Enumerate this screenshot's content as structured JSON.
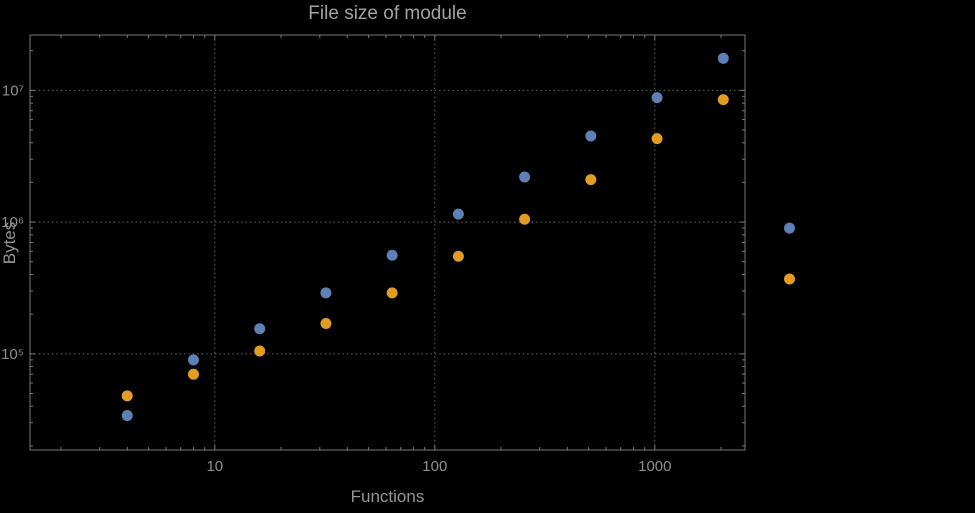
{
  "chart_data": {
    "type": "scatter",
    "title": "File size of module",
    "xlabel": "Functions",
    "ylabel": "Bytes",
    "x_scale": "log",
    "y_scale": "log",
    "grid": "dotted",
    "legend": "none",
    "x": [
      4,
      8,
      16,
      32,
      64,
      128,
      256,
      512,
      1024,
      2048,
      4096
    ],
    "series": [
      {
        "name": "series-1-blue",
        "color": "#5e81b5",
        "values": [
          34000,
          90000,
          155000,
          290000,
          560000,
          1150000,
          2200000,
          4500000,
          8800000,
          17500000,
          900000
        ]
      },
      {
        "name": "series-2-orange",
        "color": "#e19c24",
        "values": [
          48000,
          70000,
          105000,
          170000,
          290000,
          550000,
          1050000,
          2100000,
          4300000,
          8500000,
          370000
        ]
      }
    ],
    "x_ticks": [
      {
        "value": 10,
        "label": "10"
      },
      {
        "value": 100,
        "label": "100"
      },
      {
        "value": 1000,
        "label": "1000"
      }
    ],
    "y_ticks": [
      {
        "value": 100000,
        "label": "10⁵"
      },
      {
        "value": 1000000,
        "label": "10⁶"
      },
      {
        "value": 10000000,
        "label": "10⁷"
      }
    ],
    "x_range_log": [
      0.16,
      3.41
    ],
    "y_range_log": [
      4.27,
      7.42
    ],
    "colors": {
      "background": "#000000",
      "frame": "#787878",
      "grid": "#6a6a6a",
      "text": "#949494",
      "point_blue": "#5e81b5",
      "point_orange": "#e19c24"
    }
  }
}
